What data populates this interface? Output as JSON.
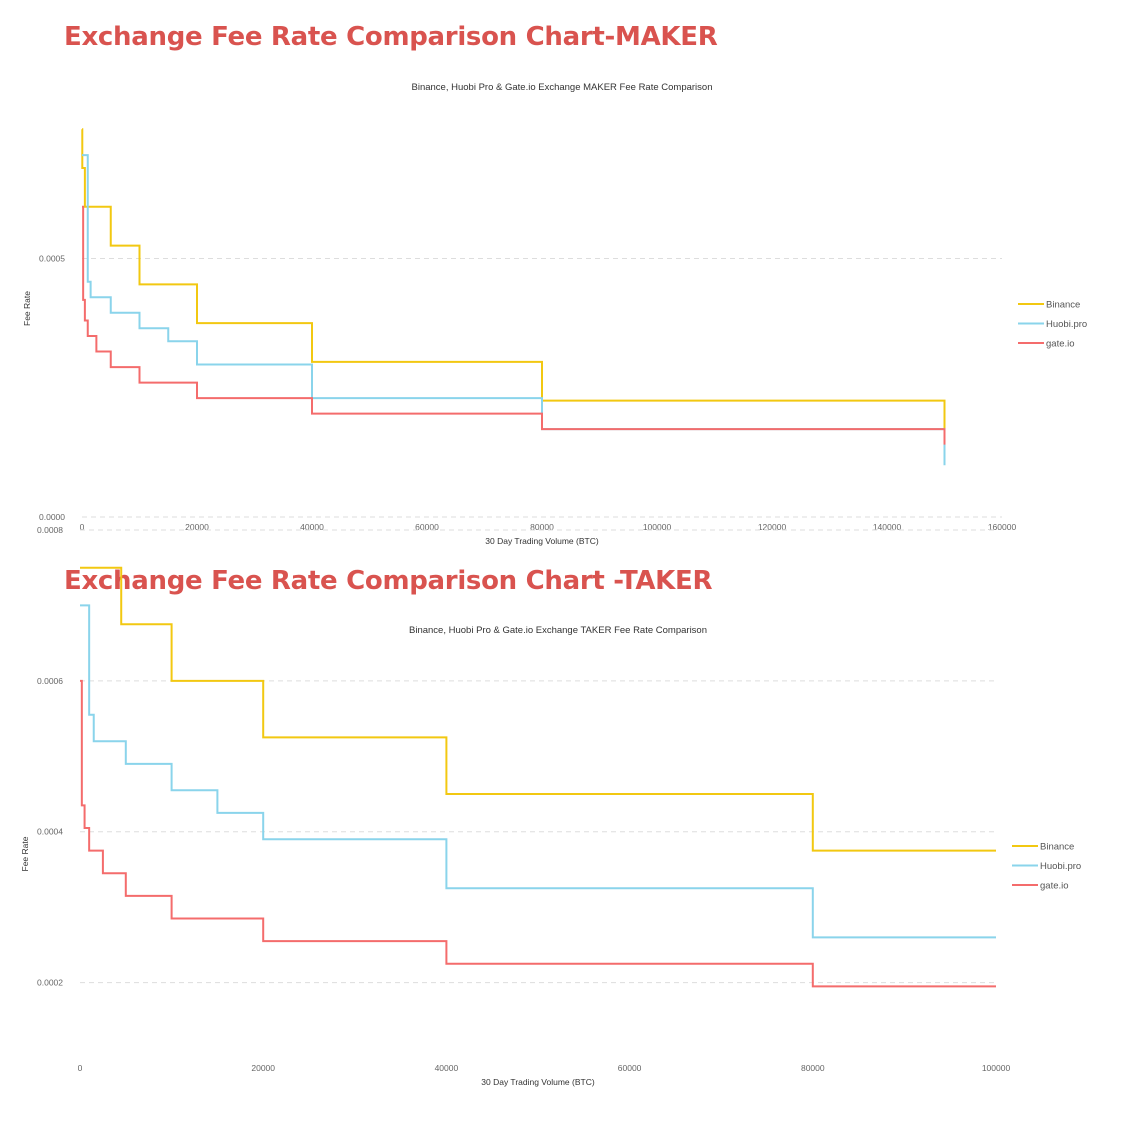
{
  "sections": [
    {
      "heading": "Exchange Fee Rate Comparison Chart-MAKER"
    },
    {
      "heading": "Exchange Fee Rate Comparison Chart -TAKER"
    }
  ],
  "chart_data": [
    {
      "type": "line",
      "step": "post",
      "title": "Binance, Huobi Pro & Gate.io Exchange MAKER Fee Rate Comparison",
      "xlabel": "30 Day Trading Volume (BTC)",
      "ylabel": "Fee Rate",
      "xlim": [
        0,
        160000
      ],
      "ylim": [
        0,
        0.001
      ],
      "xticks": [
        0,
        20000,
        40000,
        60000,
        80000,
        100000,
        120000,
        140000,
        160000
      ],
      "yticks": [
        0.0,
        0.0005
      ],
      "ytick_labels": [
        "0.0000",
        "0.0005"
      ],
      "grid": true,
      "legend_position": "right",
      "series": [
        {
          "name": "Binance",
          "color": "#f2c811",
          "x": [
            0,
            50,
            500,
            5000,
            10000,
            20000,
            40000,
            80000,
            150000,
            150000
          ],
          "y": [
            0.00075,
            0.000675,
            0.0006,
            0.000525,
            0.00045,
            0.000375,
            0.0003,
            0.000225,
            0.00015,
            0.00015
          ]
        },
        {
          "name": "Huobi.pro",
          "color": "#8ad4eb",
          "x": [
            0,
            1000,
            1500,
            5000,
            10000,
            15000,
            20000,
            40000,
            80000,
            150000,
            150000
          ],
          "y": [
            0.0007,
            0.000455,
            0.000425,
            0.000395,
            0.000365,
            0.00034,
            0.000295,
            0.00023,
            0.00017,
            0.00011,
            0.0001
          ]
        },
        {
          "name": "gate.io",
          "color": "#f46c6c",
          "x": [
            0,
            200,
            500,
            1000,
            2500,
            5000,
            10000,
            20000,
            40000,
            80000,
            150000
          ],
          "y": [
            0.0006,
            0.00042,
            0.00038,
            0.00035,
            0.00032,
            0.00029,
            0.00026,
            0.00023,
            0.0002,
            0.00017,
            0.00014
          ]
        }
      ]
    },
    {
      "type": "line",
      "step": "post",
      "title": "Binance, Huobi Pro & Gate.io Exchange TAKER Fee Rate Comparison",
      "xlabel": "30 Day Trading Volume (BTC)",
      "ylabel": "Fee Rate",
      "xlim": [
        0,
        100000
      ],
      "ylim": [
        0.0001,
        0.0008
      ],
      "xticks": [
        0,
        20000,
        40000,
        60000,
        80000,
        100000
      ],
      "yticks": [
        0.0002,
        0.0004,
        0.0006,
        0.0008
      ],
      "ytick_labels": [
        "0.0002",
        "0.0004",
        "0.0006",
        "0.0008"
      ],
      "grid": true,
      "legend_position": "right",
      "series": [
        {
          "name": "Binance",
          "color": "#f2c811",
          "x": [
            0,
            4500,
            10000,
            20000,
            40000,
            80000,
            100000
          ],
          "y": [
            0.00075,
            0.000675,
            0.0006,
            0.000525,
            0.00045,
            0.000375,
            0.000375
          ]
        },
        {
          "name": "Huobi.pro",
          "color": "#8ad4eb",
          "x": [
            0,
            1000,
            1500,
            5000,
            10000,
            15000,
            20000,
            40000,
            80000,
            100000
          ],
          "y": [
            0.0007,
            0.000555,
            0.00052,
            0.00049,
            0.000455,
            0.000425,
            0.00039,
            0.000325,
            0.00026,
            0.00026
          ]
        },
        {
          "name": "gate.io",
          "color": "#f46c6c",
          "x": [
            0,
            200,
            500,
            1000,
            2500,
            5000,
            10000,
            20000,
            40000,
            80000,
            100000
          ],
          "y": [
            0.0006,
            0.000435,
            0.000405,
            0.000375,
            0.000345,
            0.000315,
            0.000285,
            0.000255,
            0.000225,
            0.000195,
            0.000195
          ]
        }
      ]
    }
  ]
}
